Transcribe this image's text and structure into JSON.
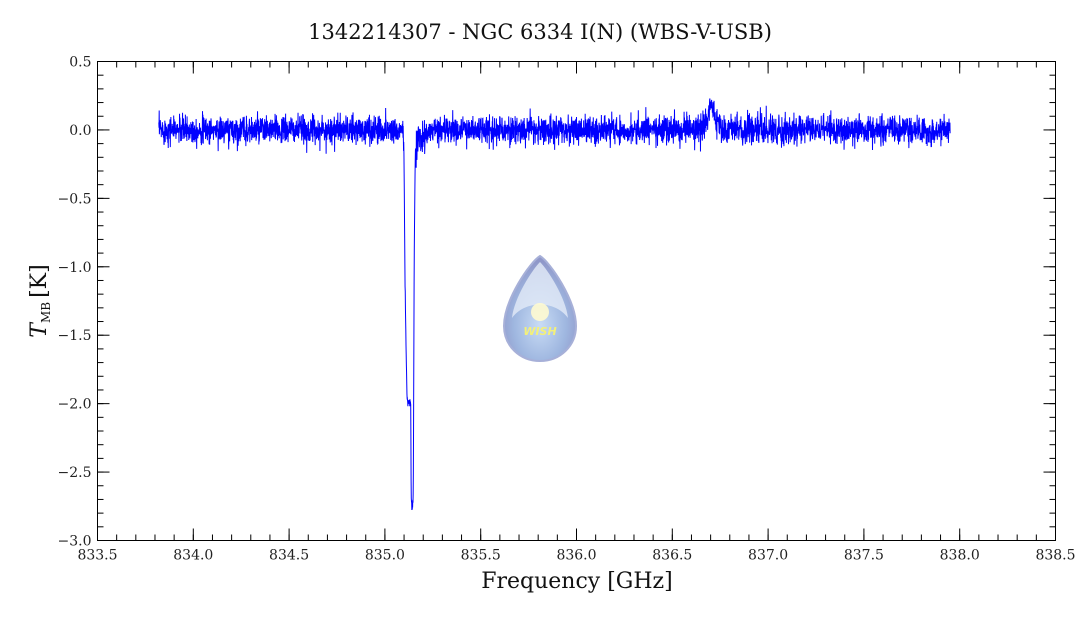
{
  "chart_data": {
    "type": "line",
    "title": "1342214307 - NGC 6334 I(N) (WBS-V-USB)",
    "xlabel": "Frequency [GHz]",
    "ylabel": {
      "symbol": "T",
      "subscript": "MB",
      "unit": "[K]"
    },
    "xlim": [
      833.5,
      838.5
    ],
    "ylim": [
      -3.0,
      0.5
    ],
    "xticks": [
      "833.5",
      "834.0",
      "834.5",
      "835.0",
      "835.5",
      "836.0",
      "836.5",
      "837.0",
      "837.5",
      "838.0",
      "838.5"
    ],
    "yticks": [
      "0.5",
      "0.0",
      "-0.5",
      "-1.0",
      "-1.5",
      "-2.0",
      "-2.5",
      "-3.0"
    ],
    "x_minor_step": 0.1,
    "y_minor_step": 0.1,
    "grid": false,
    "series": [
      {
        "name": "spectrum",
        "color": "#0000ff",
        "x_range": [
          833.82,
          837.95
        ],
        "noise_rms": 0.05,
        "baseline": 0.0,
        "features": [
          {
            "type": "absorption",
            "points": [
              [
                835.095,
                0.0
              ],
              [
                835.1,
                -0.27
              ],
              [
                835.105,
                -1.09
              ],
              [
                835.111,
                -1.65
              ],
              [
                835.116,
                -1.98
              ],
              [
                835.135,
                -2.0
              ],
              [
                835.137,
                -2.68
              ],
              [
                835.142,
                -2.79
              ],
              [
                835.148,
                -2.7
              ],
              [
                835.15,
                -1.98
              ],
              [
                835.153,
                -0.92
              ],
              [
                835.158,
                -0.23
              ],
              [
                835.17,
                -0.08
              ],
              [
                835.25,
                0.0
              ]
            ]
          },
          {
            "type": "emission",
            "points": [
              [
                836.65,
                0.0
              ],
              [
                836.69,
                0.12
              ],
              [
                836.7,
                0.22
              ],
              [
                836.72,
                0.1
              ],
              [
                836.76,
                0.0
              ]
            ]
          }
        ]
      }
    ],
    "watermark": "WISH"
  }
}
